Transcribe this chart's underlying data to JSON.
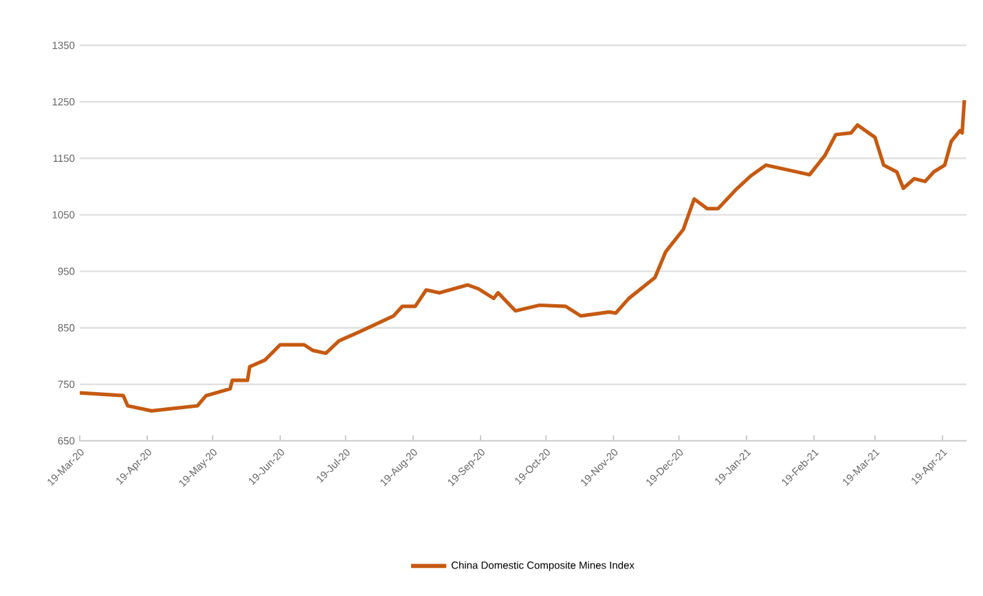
{
  "chart_data": {
    "type": "line",
    "x": [
      "2020-03-19",
      "2020-04-08",
      "2020-04-10",
      "2020-04-21",
      "2020-05-12",
      "2020-05-16",
      "2020-05-27",
      "2020-05-28",
      "2020-06-04",
      "2020-06-05",
      "2020-06-12",
      "2020-06-19",
      "2020-06-30",
      "2020-07-04",
      "2020-07-10",
      "2020-07-16",
      "2020-07-26",
      "2020-08-10",
      "2020-08-14",
      "2020-08-20",
      "2020-08-25",
      "2020-08-31",
      "2020-09-13",
      "2020-09-18",
      "2020-09-25",
      "2020-09-27",
      "2020-10-05",
      "2020-10-16",
      "2020-10-28",
      "2020-11-04",
      "2020-11-17",
      "2020-11-20",
      "2020-11-26",
      "2020-12-08",
      "2020-12-13",
      "2020-12-21",
      "2020-12-26",
      "2021-01-01",
      "2021-01-06",
      "2021-01-14",
      "2021-01-21",
      "2021-01-28",
      "2021-02-17",
      "2021-02-24",
      "2021-03-01",
      "2021-03-08",
      "2021-03-11",
      "2021-03-19",
      "2021-03-23",
      "2021-03-29",
      "2021-04-01",
      "2021-04-06",
      "2021-04-11",
      "2021-04-15",
      "2021-04-20",
      "2021-04-23",
      "2021-04-27",
      "2021-04-28",
      "2021-04-29"
    ],
    "series": [
      {
        "name": "China Domestic Composite Mines Index",
        "color": "#c55a11",
        "values": [
          735,
          730,
          712,
          703,
          712,
          730,
          742,
          757,
          757,
          781,
          793,
          820,
          820,
          810,
          805,
          827,
          844,
          871,
          888,
          888,
          917,
          912,
          926,
          919,
          902,
          912,
          880,
          890,
          888,
          871,
          878,
          876,
          902,
          939,
          985,
          1024,
          1078,
          1061,
          1061,
          1094,
          1119,
          1138,
          1121,
          1155,
          1192,
          1195,
          1209,
          1187,
          1138,
          1126,
          1097,
          1114,
          1109,
          1126,
          1138,
          1180,
          1199,
          1195,
          1253
        ]
      }
    ],
    "xlim": [
      "2020-03-19",
      "2021-04-30"
    ],
    "xticks": [
      {
        "value": "2020-03-19",
        "label": "19-Mar-20"
      },
      {
        "value": "2020-04-19",
        "label": "19-Apr-20"
      },
      {
        "value": "2020-05-19",
        "label": "19-May-20"
      },
      {
        "value": "2020-06-19",
        "label": "19-Jun-20"
      },
      {
        "value": "2020-07-19",
        "label": "19-Jul-20"
      },
      {
        "value": "2020-08-19",
        "label": "19-Aug-20"
      },
      {
        "value": "2020-09-19",
        "label": "19-Sep-20"
      },
      {
        "value": "2020-10-19",
        "label": "19-Oct-20"
      },
      {
        "value": "2020-11-19",
        "label": "19-Nov-20"
      },
      {
        "value": "2020-12-19",
        "label": "19-Dec-20"
      },
      {
        "value": "2021-01-19",
        "label": "19-Jan-21"
      },
      {
        "value": "2021-02-19",
        "label": "19-Feb-21"
      },
      {
        "value": "2021-03-19",
        "label": "19-Mar-21"
      },
      {
        "value": "2021-04-19",
        "label": "19-Apr-21"
      }
    ],
    "ylim": [
      650,
      1350
    ],
    "yticks": [
      650,
      750,
      850,
      950,
      1050,
      1150,
      1250,
      1350
    ],
    "grid": "y",
    "legend": "bottom",
    "marker": "none",
    "line_style": "solid"
  }
}
